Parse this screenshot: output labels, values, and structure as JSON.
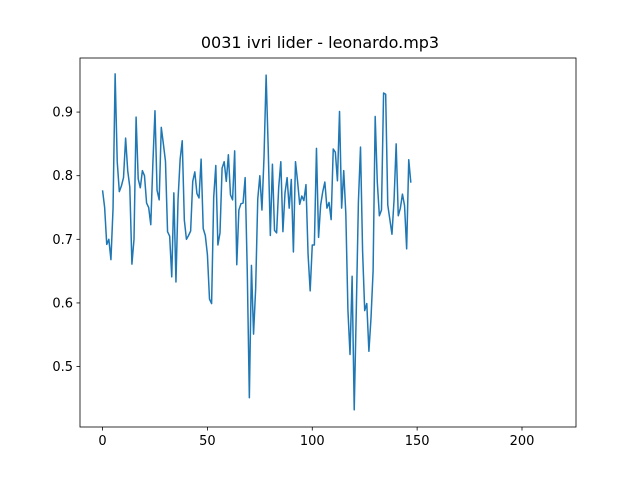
{
  "chart_data": {
    "type": "line",
    "title": "0031 ivri lider - leonardo.mp3",
    "xlabel": "",
    "ylabel": "",
    "xlim": [
      -10.75,
      225.75
    ],
    "ylim": [
      0.405,
      0.985
    ],
    "x_ticks": [
      0,
      50,
      100,
      150,
      200
    ],
    "x_tick_labels": [
      "0",
      "50",
      "100",
      "150",
      "200"
    ],
    "y_ticks": [
      0.5,
      0.6,
      0.7,
      0.8,
      0.9
    ],
    "y_tick_labels": [
      "0.5",
      "0.6",
      "0.7",
      "0.8",
      "0.9"
    ],
    "grid": false,
    "line_color": "#1f77b4",
    "series": [
      {
        "values": [
          0.777,
          0.75,
          0.692,
          0.7,
          0.668,
          0.748,
          0.96,
          0.822,
          0.775,
          0.784,
          0.797,
          0.859,
          0.808,
          0.782,
          0.661,
          0.7,
          0.892,
          0.795,
          0.781,
          0.808,
          0.8,
          0.757,
          0.75,
          0.723,
          0.82,
          0.902,
          0.777,
          0.762,
          0.876,
          0.85,
          0.823,
          0.712,
          0.705,
          0.641,
          0.773,
          0.633,
          0.763,
          0.826,
          0.855,
          0.73,
          0.7,
          0.706,
          0.713,
          0.791,
          0.806,
          0.772,
          0.765,
          0.826,
          0.717,
          0.706,
          0.676,
          0.606,
          0.599,
          0.766,
          0.816,
          0.691,
          0.71,
          0.812,
          0.822,
          0.791,
          0.833,
          0.77,
          0.762,
          0.839,
          0.66,
          0.746,
          0.756,
          0.757,
          0.797,
          0.65,
          0.451,
          0.659,
          0.551,
          0.622,
          0.763,
          0.8,
          0.746,
          0.83,
          0.958,
          0.842,
          0.706,
          0.818,
          0.714,
          0.71,
          0.782,
          0.822,
          0.712,
          0.773,
          0.797,
          0.749,
          0.794,
          0.68,
          0.822,
          0.791,
          0.755,
          0.768,
          0.761,
          0.786,
          0.676,
          0.619,
          0.691,
          0.691,
          0.843,
          0.703,
          0.754,
          0.775,
          0.79,
          0.749,
          0.758,
          0.731,
          0.842,
          0.837,
          0.792,
          0.901,
          0.749,
          0.808,
          0.74,
          0.589,
          0.519,
          0.642,
          0.432,
          0.59,
          0.759,
          0.845,
          0.681,
          0.588,
          0.599,
          0.524,
          0.576,
          0.65,
          0.893,
          0.79,
          0.737,
          0.746,
          0.93,
          0.928,
          0.754,
          0.731,
          0.708,
          0.762,
          0.85,
          0.737,
          0.749,
          0.771,
          0.753,
          0.685,
          0.825,
          0.789
        ]
      }
    ]
  }
}
